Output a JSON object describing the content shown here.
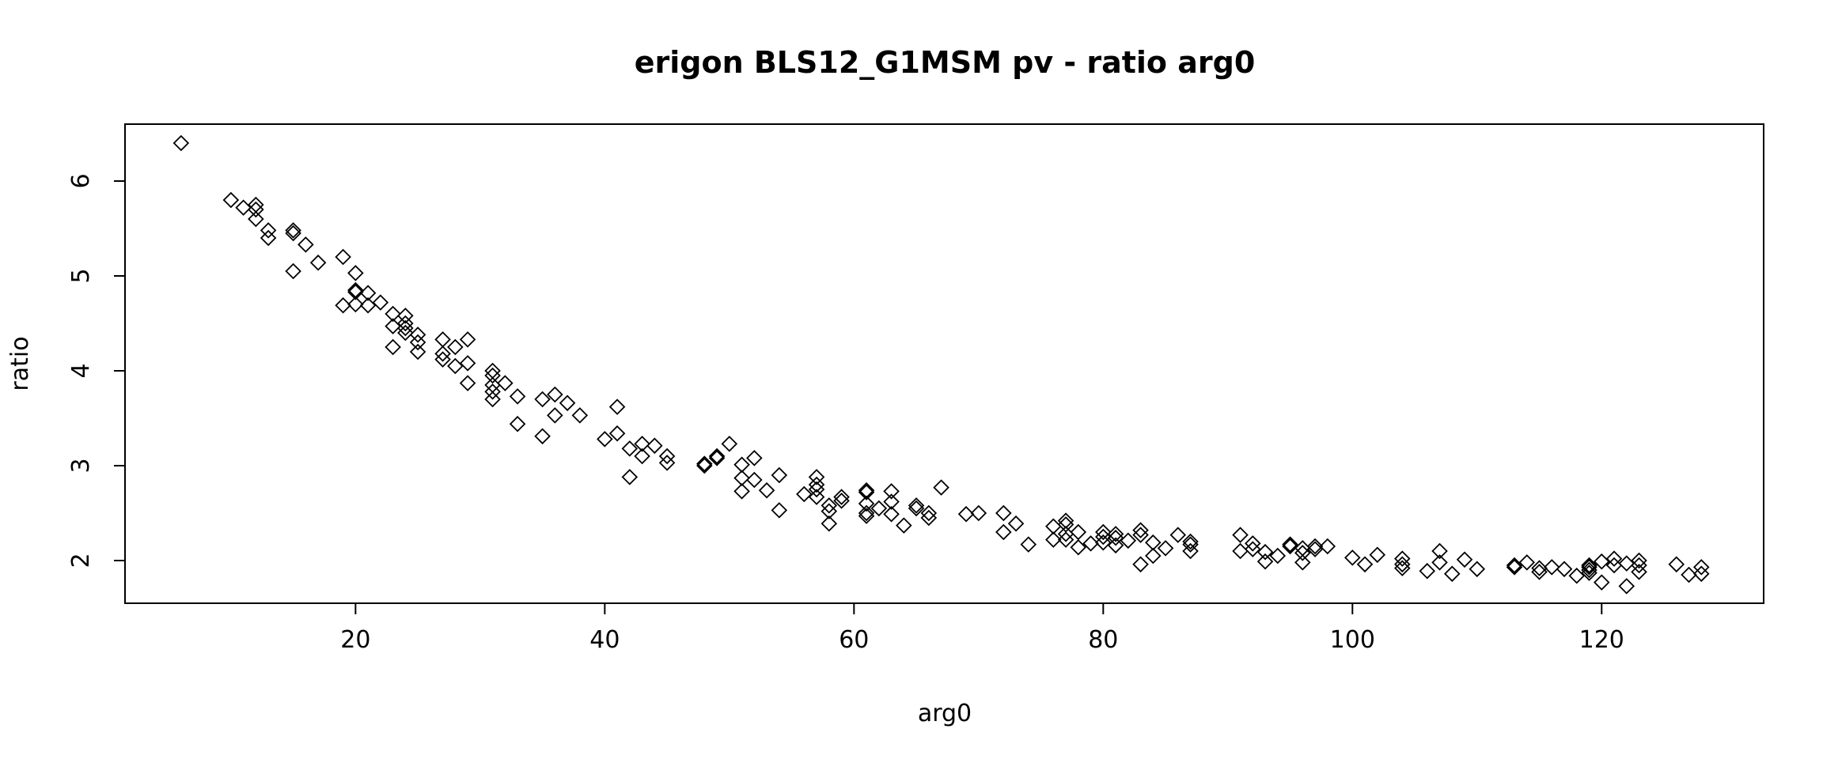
{
  "chart_data": {
    "type": "scatter",
    "title": "erigon BLS12_G1MSM pv - ratio arg0",
    "xlabel": "arg0",
    "ylabel": "ratio",
    "xlim": [
      1.5,
      133
    ],
    "ylim": [
      1.55,
      6.6
    ],
    "xticks": [
      20,
      40,
      60,
      80,
      100,
      120
    ],
    "yticks": [
      2,
      3,
      4,
      5,
      6
    ],
    "xtick_labels": [
      "20",
      "40",
      "60",
      "80",
      "100",
      "120"
    ],
    "ytick_labels": [
      "2",
      "3",
      "4",
      "5",
      "6"
    ],
    "marker": "diamond-open",
    "grid": false,
    "legend": "none",
    "points": [
      [
        6,
        6.4
      ],
      [
        10,
        5.8
      ],
      [
        11,
        5.72
      ],
      [
        12,
        5.75
      ],
      [
        12,
        5.7
      ],
      [
        12,
        5.6
      ],
      [
        13,
        5.48
      ],
      [
        13,
        5.4
      ],
      [
        15,
        5.48
      ],
      [
        15,
        5.45
      ],
      [
        15,
        5.05
      ],
      [
        16,
        5.33
      ],
      [
        17,
        5.14
      ],
      [
        19,
        5.2
      ],
      [
        19,
        4.69
      ],
      [
        20,
        5.03
      ],
      [
        20,
        4.85
      ],
      [
        20,
        4.83
      ],
      [
        20,
        4.7
      ],
      [
        21,
        4.82
      ],
      [
        21,
        4.69
      ],
      [
        22,
        4.72
      ],
      [
        23,
        4.6
      ],
      [
        23,
        4.47
      ],
      [
        23,
        4.25
      ],
      [
        24,
        4.58
      ],
      [
        24,
        4.5
      ],
      [
        24,
        4.45
      ],
      [
        24,
        4.4
      ],
      [
        25,
        4.38
      ],
      [
        25,
        4.3
      ],
      [
        25,
        4.2
      ],
      [
        27,
        4.33
      ],
      [
        27,
        4.18
      ],
      [
        27,
        4.12
      ],
      [
        28,
        4.25
      ],
      [
        28,
        4.05
      ],
      [
        29,
        4.33
      ],
      [
        29,
        4.08
      ],
      [
        29,
        3.87
      ],
      [
        31,
        4.0
      ],
      [
        31,
        3.95
      ],
      [
        31,
        3.85
      ],
      [
        31,
        3.78
      ],
      [
        31,
        3.7
      ],
      [
        32,
        3.87
      ],
      [
        33,
        3.73
      ],
      [
        33,
        3.44
      ],
      [
        35,
        3.7
      ],
      [
        35,
        3.31
      ],
      [
        36,
        3.75
      ],
      [
        36,
        3.53
      ],
      [
        37,
        3.66
      ],
      [
        38,
        3.53
      ],
      [
        40,
        3.28
      ],
      [
        41,
        3.62
      ],
      [
        41,
        3.34
      ],
      [
        42,
        3.18
      ],
      [
        42,
        2.88
      ],
      [
        43,
        3.23
      ],
      [
        43,
        3.1
      ],
      [
        44,
        3.21
      ],
      [
        45,
        3.1
      ],
      [
        45,
        3.03
      ],
      [
        48,
        3.02
      ],
      [
        48,
        3.0
      ],
      [
        49,
        3.1
      ],
      [
        49,
        3.08
      ],
      [
        50,
        3.23
      ],
      [
        51,
        3.01
      ],
      [
        51,
        2.87
      ],
      [
        51,
        2.73
      ],
      [
        52,
        3.08
      ],
      [
        52,
        2.85
      ],
      [
        53,
        2.74
      ],
      [
        54,
        2.9
      ],
      [
        54,
        2.53
      ],
      [
        56,
        2.7
      ],
      [
        57,
        2.88
      ],
      [
        57,
        2.8
      ],
      [
        57,
        2.75
      ],
      [
        57,
        2.67
      ],
      [
        58,
        2.58
      ],
      [
        58,
        2.52
      ],
      [
        58,
        2.39
      ],
      [
        59,
        2.67
      ],
      [
        59,
        2.63
      ],
      [
        61,
        2.74
      ],
      [
        61,
        2.72
      ],
      [
        61,
        2.6
      ],
      [
        61,
        2.5
      ],
      [
        61,
        2.47
      ],
      [
        62,
        2.55
      ],
      [
        63,
        2.73
      ],
      [
        63,
        2.62
      ],
      [
        63,
        2.49
      ],
      [
        64,
        2.37
      ],
      [
        65,
        2.58
      ],
      [
        65,
        2.55
      ],
      [
        66,
        2.5
      ],
      [
        66,
        2.45
      ],
      [
        67,
        2.77
      ],
      [
        69,
        2.49
      ],
      [
        70,
        2.5
      ],
      [
        72,
        2.5
      ],
      [
        72,
        2.3
      ],
      [
        73,
        2.39
      ],
      [
        74,
        2.17
      ],
      [
        76,
        2.36
      ],
      [
        76,
        2.22
      ],
      [
        77,
        2.42
      ],
      [
        77,
        2.38
      ],
      [
        77,
        2.28
      ],
      [
        77,
        2.22
      ],
      [
        78,
        2.3
      ],
      [
        78,
        2.14
      ],
      [
        79,
        2.18
      ],
      [
        80,
        2.3
      ],
      [
        80,
        2.25
      ],
      [
        80,
        2.19
      ],
      [
        81,
        2.28
      ],
      [
        81,
        2.24
      ],
      [
        81,
        2.16
      ],
      [
        82,
        2.21
      ],
      [
        83,
        2.32
      ],
      [
        83,
        2.27
      ],
      [
        83,
        1.96
      ],
      [
        84,
        2.19
      ],
      [
        84,
        2.05
      ],
      [
        85,
        2.13
      ],
      [
        86,
        2.27
      ],
      [
        87,
        2.2
      ],
      [
        87,
        2.17
      ],
      [
        87,
        2.1
      ],
      [
        91,
        2.27
      ],
      [
        91,
        2.1
      ],
      [
        92,
        2.18
      ],
      [
        92,
        2.12
      ],
      [
        93,
        2.09
      ],
      [
        93,
        1.99
      ],
      [
        94,
        2.05
      ],
      [
        95,
        2.17
      ],
      [
        95,
        2.15
      ],
      [
        96,
        2.13
      ],
      [
        96,
        2.08
      ],
      [
        96,
        1.98
      ],
      [
        97,
        2.15
      ],
      [
        97,
        2.12
      ],
      [
        98,
        2.15
      ],
      [
        100,
        2.03
      ],
      [
        101,
        1.96
      ],
      [
        102,
        2.06
      ],
      [
        104,
        2.02
      ],
      [
        104,
        1.96
      ],
      [
        104,
        1.92
      ],
      [
        106,
        1.89
      ],
      [
        107,
        2.1
      ],
      [
        107,
        1.98
      ],
      [
        108,
        1.86
      ],
      [
        109,
        2.01
      ],
      [
        110,
        1.91
      ],
      [
        113,
        1.95
      ],
      [
        113,
        1.93
      ],
      [
        114,
        1.98
      ],
      [
        115,
        1.92
      ],
      [
        115,
        1.88
      ],
      [
        116,
        1.93
      ],
      [
        117,
        1.91
      ],
      [
        118,
        1.84
      ],
      [
        119,
        1.95
      ],
      [
        119,
        1.93
      ],
      [
        119,
        1.9
      ],
      [
        119,
        1.87
      ],
      [
        120,
        1.99
      ],
      [
        120,
        1.77
      ],
      [
        121,
        2.02
      ],
      [
        121,
        1.95
      ],
      [
        122,
        1.97
      ],
      [
        122,
        1.73
      ],
      [
        123,
        2.0
      ],
      [
        123,
        1.95
      ],
      [
        123,
        1.88
      ],
      [
        126,
        1.96
      ],
      [
        127,
        1.85
      ],
      [
        128,
        1.93
      ],
      [
        128,
        1.86
      ]
    ]
  }
}
